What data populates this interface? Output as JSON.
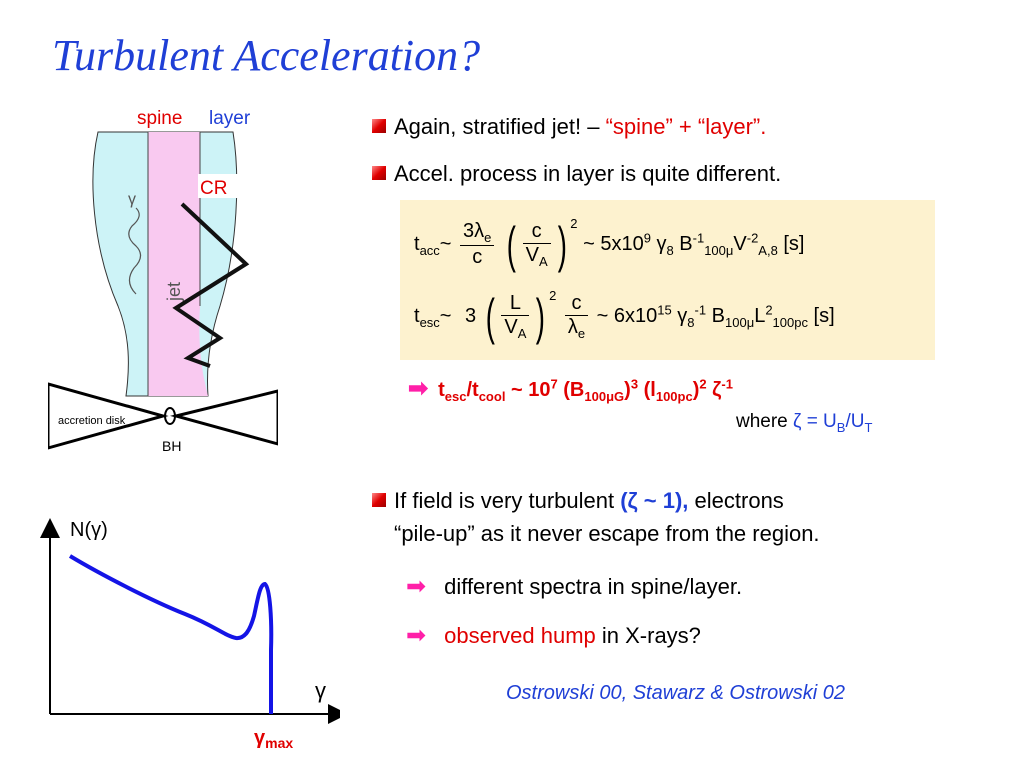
{
  "slide": {
    "title": "Turbulent Acceleration?"
  },
  "diagram": {
    "spine_label": "spine",
    "layer_label": "layer",
    "cr_label": "CR",
    "gamma_label": "γ",
    "jet_label": "jet",
    "disk_label": "accretion  disk",
    "bh_label": "BH",
    "colors": {
      "layer": "#cdf3f7",
      "spine": "#f9c9f0",
      "label_red": "#e00000",
      "label_blue": "#1f3fd6"
    }
  },
  "bullets": {
    "b1_prefix": "Again, stratified jet!  – ",
    "b1_highlight": "“spine” + “layer”.",
    "b2": "Accel. process in layer is quite different.",
    "b3_line1_a": "If  field is very turbulent ",
    "b3_line1_b": "(ζ ~ 1),",
    "b3_line1_c": " electrons",
    "b3_line2": "“pile-up” as it never escape from the region.",
    "s1": "different spectra in spine/layer.",
    "s2_highlight": "observed hump",
    "s2_rest": " in X-rays?"
  },
  "formula": {
    "tacc_sym": "t",
    "tacc_sub": "acc",
    "tilde": "~",
    "f1_num": "3λ",
    "f1_num_sub": "e",
    "f1_den": "c",
    "f2_num": "c",
    "f2_den": "V",
    "f2_den_sub": "A",
    "pow2": "2",
    "tacc_rhs_a": "~  5x10",
    "tacc_rhs_exp1": "9",
    "tacc_rhs_b": " γ",
    "tacc_rhs_sub1": "8",
    "tacc_rhs_c": " B",
    "tacc_rhs_exp2": "-1",
    "tacc_rhs_sub2": "100μ",
    "tacc_rhs_d": "V",
    "tacc_rhs_exp3": "-2",
    "tacc_rhs_sub3": "A,8",
    "tacc_rhs_e": "  [s]",
    "tesc_sub": "esc",
    "tesc_three": "3",
    "f3_num": "L",
    "f3_den": "V",
    "f3_den_sub": "A",
    "f4_num": "c",
    "f4_den": "λ",
    "f4_den_sub": "e",
    "tesc_rhs_a": "~  6x10",
    "tesc_rhs_exp1": "15",
    "tesc_rhs_b": " γ",
    "tesc_rhs_sub1": "8",
    "tesc_rhs_exp2": "-1",
    "tesc_rhs_c": " B",
    "tesc_rhs_sub2": "100μ",
    "tesc_rhs_d": "L",
    "tesc_rhs_exp3": "2",
    "tesc_rhs_sub3": "100pc",
    "tesc_rhs_e": " [s]"
  },
  "result": {
    "a": "t",
    "a_sub": "esc",
    "b": "/t",
    "b_sub": "cool",
    "c": " ~ 10",
    "c_exp": "7",
    "d": "  (B",
    "d_sub": "100μG",
    "e": ")",
    "e_exp": "3",
    "f": " (l",
    "f_sub": "100pc",
    "g": ")",
    "g_exp": "2",
    "h": " ζ",
    "h_exp": "-1",
    "where_label": "where  ",
    "where_eq": "ζ = U",
    "where_sub1": "B",
    "where_slash": "/U",
    "where_sub2": "T"
  },
  "plot": {
    "ylabel": "N(γ)",
    "xlabel": "γ",
    "gamma_max": "γ",
    "gamma_max_sub": "max",
    "line_color": "#1414e6"
  },
  "reference": "Ostrowski 00, Stawarz & Ostrowski 02"
}
